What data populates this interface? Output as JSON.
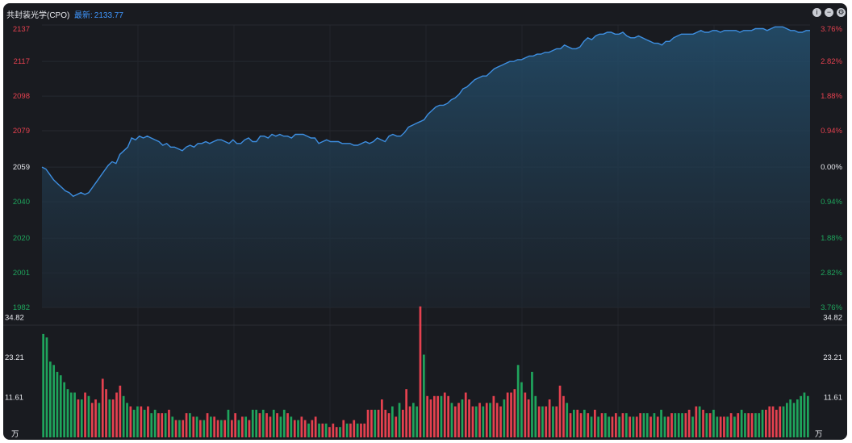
{
  "header": {
    "title": "共封装光学(CPO)",
    "latest_label": "最新:",
    "latest_value": "2133.77",
    "icons": [
      "info-icon",
      "minus-icon",
      "gear-icon"
    ]
  },
  "colors": {
    "background": "#191b20",
    "line": "#3d8ee0",
    "up": "#e5414f",
    "down": "#1fa45c",
    "neutral": "#e7e9ee"
  },
  "chart_data": [
    {
      "type": "area",
      "name": "price",
      "y_ticks": [
        "2137",
        "2117",
        "2098",
        "2079",
        "2059",
        "2040",
        "2020",
        "2001",
        "1982"
      ],
      "y_tick_values": [
        2137,
        2117,
        2098,
        2079,
        2059,
        2040,
        2020,
        2001,
        1982
      ],
      "pct_ticks": [
        "3.76%",
        "2.82%",
        "1.88%",
        "0.94%",
        "0.00%",
        "0.94%",
        "1.88%",
        "2.82%",
        "3.76%"
      ],
      "prev_close": 2059,
      "ylim": [
        1982,
        2137
      ],
      "values": [
        2059,
        2058,
        2055,
        2052,
        2050,
        2048,
        2046,
        2045,
        2043,
        2044,
        2045,
        2044,
        2045,
        2048,
        2051,
        2054,
        2057,
        2060,
        2062,
        2061,
        2066,
        2068,
        2070,
        2075,
        2074,
        2076,
        2075,
        2076,
        2075,
        2074,
        2073,
        2071,
        2072,
        2070,
        2070,
        2069,
        2068,
        2070,
        2071,
        2070,
        2072,
        2072,
        2073,
        2072,
        2073,
        2074,
        2074,
        2073,
        2072,
        2074,
        2072,
        2072,
        2074,
        2075,
        2073,
        2073,
        2076,
        2076,
        2075,
        2077,
        2076,
        2077,
        2076,
        2076,
        2075,
        2077,
        2077,
        2077,
        2076,
        2075,
        2075,
        2072,
        2073,
        2074,
        2073,
        2073,
        2073,
        2072,
        2072,
        2072,
        2071,
        2071,
        2072,
        2073,
        2072,
        2073,
        2075,
        2074,
        2073,
        2076,
        2077,
        2076,
        2076,
        2078,
        2081,
        2082,
        2083,
        2084,
        2085,
        2088,
        2090,
        2092,
        2093,
        2093,
        2094,
        2096,
        2097,
        2099,
        2102,
        2103,
        2105,
        2107,
        2108,
        2109,
        2109,
        2111,
        2113,
        2114,
        2115,
        2116,
        2117,
        2117,
        2118,
        2118,
        2119,
        2120,
        2120,
        2121,
        2121,
        2122,
        2122,
        2123,
        2124,
        2124,
        2126,
        2125,
        2124,
        2124,
        2125,
        2128,
        2130,
        2129,
        2131,
        2132,
        2132,
        2133,
        2133,
        2132,
        2132,
        2133,
        2131,
        2130,
        2130,
        2131,
        2130,
        2129,
        2128,
        2127,
        2127,
        2126,
        2128,
        2128,
        2130,
        2131,
        2132,
        2132,
        2132,
        2132,
        2133,
        2134,
        2133,
        2133,
        2134,
        2134,
        2133,
        2134,
        2134,
        2134,
        2134,
        2133,
        2134,
        2134,
        2134,
        2135,
        2135,
        2135,
        2134,
        2135,
        2136,
        2136,
        2136,
        2135,
        2134,
        2134,
        2133,
        2133,
        2134,
        2134
      ]
    },
    {
      "type": "bar",
      "name": "volume",
      "unit": "万",
      "y_ticks": [
        "34.82",
        "23.21",
        "11.61"
      ],
      "y_tick_values": [
        34.82,
        23.21,
        11.61
      ],
      "ylim": [
        0,
        37
      ],
      "values": [
        30,
        29,
        22,
        21,
        19,
        18,
        16,
        14,
        13,
        13,
        11,
        11,
        13,
        12,
        10,
        11,
        10,
        17,
        14,
        11,
        11,
        13,
        15,
        12,
        10,
        9,
        8,
        9,
        9,
        8,
        9,
        7,
        8,
        7,
        7,
        7,
        8,
        6,
        5,
        5,
        5,
        7,
        7,
        6,
        6,
        5,
        5,
        7,
        6,
        6,
        5,
        5,
        5,
        8,
        5,
        7,
        5,
        6,
        6,
        5,
        8,
        8,
        7,
        8,
        7,
        6,
        8,
        7,
        6,
        8,
        7,
        6,
        5,
        5,
        6,
        5,
        4,
        5,
        6,
        4,
        4,
        4,
        3,
        4,
        3,
        3,
        5,
        4,
        4,
        5,
        4,
        4,
        4,
        8,
        8,
        8,
        8,
        11,
        8,
        7,
        9,
        6,
        10,
        8,
        14,
        9,
        10,
        9,
        38,
        24,
        12,
        11,
        12,
        12,
        12,
        13,
        12,
        10,
        9,
        10,
        11,
        13,
        11,
        9,
        9,
        10,
        9,
        10,
        10,
        12,
        10,
        9,
        11,
        13,
        13,
        14,
        21,
        16,
        13,
        11,
        19,
        12,
        9,
        9,
        9,
        11,
        9,
        9,
        15,
        12,
        10,
        7,
        8,
        8,
        7,
        8,
        7,
        6,
        8,
        6,
        7,
        7,
        6,
        6,
        7,
        6,
        7,
        7,
        6,
        6,
        6,
        7,
        7,
        7,
        6,
        7,
        6,
        8,
        6,
        6,
        7,
        7,
        7,
        7,
        7,
        8,
        6,
        9,
        9,
        8,
        7,
        7,
        8,
        6,
        6,
        6,
        6,
        7,
        6,
        7,
        8,
        7,
        7,
        7,
        7,
        7,
        8,
        8,
        9,
        9,
        8,
        9,
        9,
        10,
        11,
        10,
        11,
        12,
        13,
        12
      ],
      "bar_colors_up": [
        false,
        false,
        false,
        false,
        false,
        false,
        false,
        false,
        false,
        false,
        true,
        false,
        true,
        false,
        true,
        true,
        false,
        true,
        true,
        false,
        true,
        true,
        true,
        false,
        false,
        true,
        false,
        false,
        true,
        false,
        true,
        false,
        false,
        true,
        true,
        false,
        true,
        false,
        true,
        false,
        true,
        true,
        false,
        true,
        false,
        true,
        false,
        true,
        false,
        true,
        true,
        false,
        true,
        false,
        true,
        true,
        false,
        true,
        false,
        true,
        false,
        false,
        true,
        false,
        true,
        true,
        false,
        true,
        false,
        false,
        true,
        false,
        true,
        false,
        true,
        true,
        false,
        true,
        true,
        false,
        true,
        false,
        true,
        true,
        true,
        false,
        true,
        false,
        true,
        true,
        false,
        true,
        true,
        true,
        true,
        false,
        true,
        true,
        true,
        true,
        false,
        true,
        false,
        true,
        true,
        true,
        false,
        false,
        true,
        false,
        true,
        true,
        true,
        true,
        false,
        true,
        true,
        false,
        true,
        true,
        false,
        true,
        true,
        true,
        false,
        true,
        false,
        true,
        false,
        true,
        true,
        true,
        false,
        true,
        true,
        true,
        false,
        false,
        true,
        true,
        false,
        false,
        true,
        false,
        true,
        true,
        false,
        true,
        true,
        true,
        false,
        true,
        false,
        true,
        true,
        false,
        true,
        false,
        true,
        false,
        true,
        false,
        false,
        true,
        true,
        false,
        true,
        false,
        true,
        false,
        true,
        true,
        false,
        false,
        true,
        false,
        true,
        false,
        false,
        true,
        true,
        false,
        false,
        false,
        true,
        true,
        false,
        true,
        false,
        true,
        false,
        true,
        false,
        false,
        true,
        true,
        false,
        true,
        false,
        true,
        false,
        false,
        true,
        true,
        false,
        false,
        false,
        true,
        true,
        true,
        true,
        true
      ]
    }
  ]
}
